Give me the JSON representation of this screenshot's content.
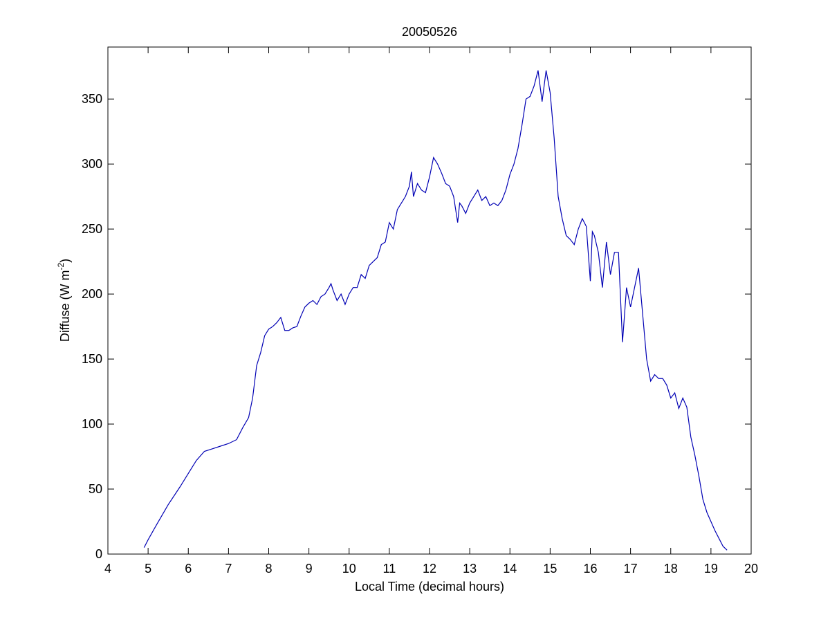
{
  "chart_data": {
    "type": "line",
    "title": "20050526",
    "xlabel": "Local Time (decimal hours)",
    "ylabel": {
      "text": "Diffuse (W m",
      "superscript": "-2",
      "suffix": ")"
    },
    "xlim": [
      4,
      20
    ],
    "xticks": [
      4,
      5,
      6,
      7,
      8,
      9,
      10,
      11,
      12,
      13,
      14,
      15,
      16,
      17,
      18,
      19,
      20
    ],
    "ylim": [
      0,
      390
    ],
    "yticks": [
      0,
      50,
      100,
      150,
      200,
      250,
      300,
      350
    ],
    "grid": false,
    "series": [
      {
        "color": "#0000b4",
        "x": [
          4.9,
          5.0,
          5.2,
          5.5,
          5.8,
          6.0,
          6.2,
          6.4,
          6.6,
          6.8,
          7.0,
          7.2,
          7.35,
          7.5,
          7.6,
          7.7,
          7.8,
          7.9,
          8.0,
          8.1,
          8.2,
          8.3,
          8.4,
          8.5,
          8.6,
          8.7,
          8.8,
          8.9,
          9.0,
          9.1,
          9.2,
          9.3,
          9.4,
          9.5,
          9.55,
          9.6,
          9.7,
          9.8,
          9.9,
          10.0,
          10.1,
          10.2,
          10.3,
          10.4,
          10.5,
          10.6,
          10.7,
          10.8,
          10.9,
          11.0,
          11.1,
          11.2,
          11.3,
          11.4,
          11.5,
          11.55,
          11.6,
          11.7,
          11.8,
          11.9,
          12.0,
          12.1,
          12.2,
          12.3,
          12.4,
          12.5,
          12.6,
          12.7,
          12.75,
          12.8,
          12.9,
          13.0,
          13.1,
          13.2,
          13.3,
          13.4,
          13.5,
          13.6,
          13.7,
          13.8,
          13.9,
          14.0,
          14.1,
          14.2,
          14.3,
          14.4,
          14.5,
          14.6,
          14.7,
          14.8,
          14.9,
          15.0,
          15.1,
          15.2,
          15.3,
          15.4,
          15.5,
          15.6,
          15.7,
          15.8,
          15.9,
          16.0,
          16.05,
          16.1,
          16.2,
          16.3,
          16.4,
          16.5,
          16.6,
          16.7,
          16.8,
          16.9,
          17.0,
          17.1,
          17.2,
          17.3,
          17.4,
          17.5,
          17.6,
          17.7,
          17.8,
          17.9,
          18.0,
          18.1,
          18.2,
          18.3,
          18.4,
          18.5,
          18.6,
          18.7,
          18.8,
          18.9,
          19.0,
          19.1,
          19.2,
          19.3,
          19.4
        ],
        "values": [
          5,
          11,
          22,
          38,
          52,
          62,
          72,
          79,
          81,
          83,
          85,
          88,
          97,
          105,
          120,
          145,
          155,
          168,
          173,
          175,
          178,
          182,
          172,
          172,
          174,
          175,
          183,
          190,
          193,
          195,
          192,
          198,
          200,
          205,
          208,
          203,
          195,
          200,
          192,
          200,
          205,
          205,
          215,
          212,
          222,
          225,
          228,
          238,
          240,
          255,
          250,
          265,
          270,
          275,
          283,
          294,
          275,
          285,
          280,
          278,
          290,
          305,
          300,
          293,
          285,
          283,
          275,
          255,
          270,
          268,
          262,
          270,
          275,
          280,
          272,
          275,
          268,
          270,
          268,
          272,
          280,
          292,
          300,
          312,
          330,
          350,
          352,
          360,
          372,
          348,
          372,
          355,
          320,
          275,
          258,
          245,
          242,
          238,
          250,
          258,
          252,
          210,
          248,
          245,
          232,
          205,
          240,
          215,
          232,
          232,
          163,
          205,
          190,
          205,
          220,
          185,
          150,
          133,
          138,
          135,
          135,
          130,
          120,
          124,
          112,
          120,
          113,
          90,
          76,
          60,
          42,
          32,
          25,
          18,
          12,
          6,
          3
        ]
      }
    ]
  }
}
